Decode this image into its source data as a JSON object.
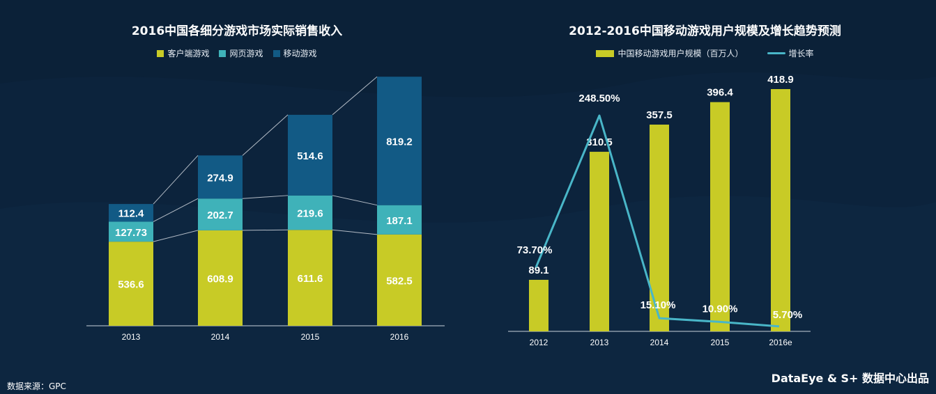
{
  "colors": {
    "background": "#0b2138",
    "client": "#c8cb26",
    "web": "#3fb2b9",
    "mobile": "#125a85",
    "users_bar": "#c8cb26",
    "growth_line": "#49b6c8",
    "axis": "#9aa8b8"
  },
  "chart_data": [
    {
      "type": "bar",
      "stacked": true,
      "title": "2016中国各细分游戏市场实际销售收入",
      "categories": [
        "2013",
        "2014",
        "2015",
        "2016"
      ],
      "series": [
        {
          "name": "客户端游戏",
          "values": [
            536.6,
            608.9,
            611.6,
            582.5
          ],
          "labels": [
            "536.6",
            "608.9",
            "611.6",
            "582.5"
          ],
          "color": "#c8cb26"
        },
        {
          "name": "网页游戏",
          "values": [
            127.73,
            202.7,
            219.6,
            187.1
          ],
          "labels": [
            "127.73",
            "202.7",
            "219.6",
            "187.1"
          ],
          "color": "#3fb2b9"
        },
        {
          "name": "移动游戏",
          "values": [
            112.4,
            274.9,
            514.6,
            819.2
          ],
          "labels": [
            "112.4",
            "274.9",
            "514.6",
            "819.2"
          ],
          "color": "#125a85"
        }
      ],
      "ylim": [
        0,
        1600
      ],
      "grid": false,
      "legend": "top-center",
      "connector_lines": true
    },
    {
      "type": "bar",
      "combo_line": true,
      "title": "2012-2016中国移动游戏用户规模及增长趋势预测",
      "categories": [
        "2012",
        "2013",
        "2014",
        "2015",
        "2016e"
      ],
      "series": [
        {
          "name": "中国移动游戏用户规模（百万人）",
          "type": "bar",
          "values": [
            89.1,
            310.5,
            357.5,
            396.4,
            418.9
          ],
          "labels": [
            "89.1",
            "310.5",
            "357.5",
            "396.4",
            "418.9"
          ],
          "color": "#c8cb26"
        },
        {
          "name": "增长率",
          "type": "line",
          "values": [
            73.7,
            248.5,
            15.1,
            10.9,
            5.7
          ],
          "labels": [
            "73.70%",
            "248.50%",
            "15.10%",
            "10.90%",
            "5.70%"
          ],
          "color": "#49b6c8"
        }
      ],
      "ylim": [
        0,
        450
      ],
      "y2lim": [
        0,
        300
      ],
      "grid": false,
      "legend": "top-center"
    }
  ],
  "footer": {
    "source": "数据来源：GPC",
    "brand": "DataEye & S+ 数据中心出品"
  }
}
